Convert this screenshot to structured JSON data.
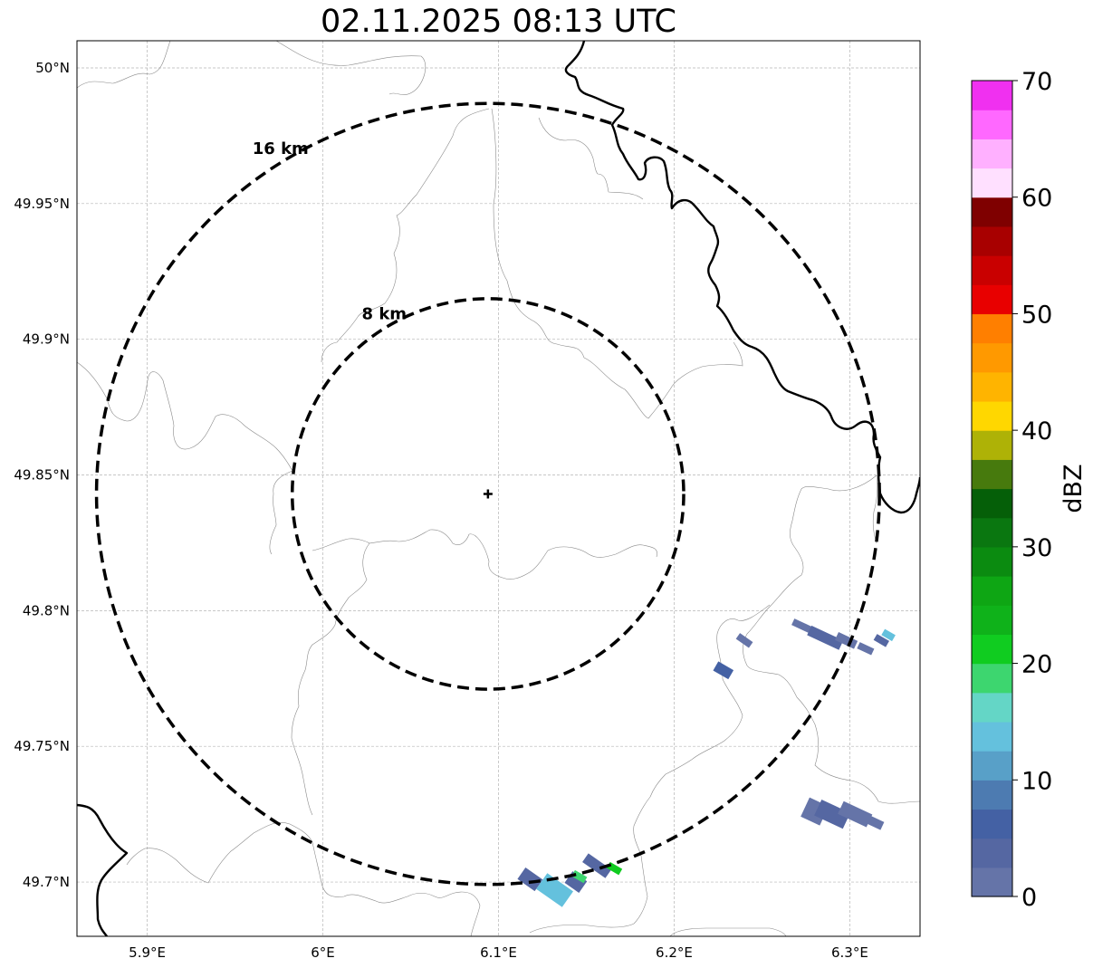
{
  "title": "02.11.2025 08:13 UTC",
  "map": {
    "lon_ticks": [
      {
        "value": 5.9,
        "label": "5.9°E"
      },
      {
        "value": 6.0,
        "label": "6°E"
      },
      {
        "value": 6.1,
        "label": "6.1°E"
      },
      {
        "value": 6.2,
        "label": "6.2°E"
      },
      {
        "value": 6.3,
        "label": "6.3°E"
      }
    ],
    "lat_ticks": [
      {
        "value": 50.0,
        "label": "50°N"
      },
      {
        "value": 49.95,
        "label": "49.95°N"
      },
      {
        "value": 49.9,
        "label": "49.9°N"
      },
      {
        "value": 49.85,
        "label": "49.85°N"
      },
      {
        "value": 49.8,
        "label": "49.8°N"
      },
      {
        "value": 49.75,
        "label": "49.75°N"
      },
      {
        "value": 49.7,
        "label": "49.7°N"
      }
    ],
    "extent": {
      "lon_min": 5.86,
      "lon_max": 6.34,
      "lat_min": 49.68,
      "lat_max": 50.01
    },
    "radar": {
      "lon": 6.094,
      "lat": 49.843
    },
    "range_rings": [
      {
        "km": 16,
        "label": "16 km"
      },
      {
        "km": 8,
        "label": "8 km"
      }
    ]
  },
  "colorbar": {
    "label": "dBZ",
    "min": 0,
    "max": 70,
    "ticks": [
      {
        "value": 0,
        "label": "0"
      },
      {
        "value": 10,
        "label": "10"
      },
      {
        "value": 20,
        "label": "20"
      },
      {
        "value": 30,
        "label": "30"
      },
      {
        "value": 40,
        "label": "40"
      },
      {
        "value": 50,
        "label": "50"
      },
      {
        "value": 60,
        "label": "60"
      },
      {
        "value": 70,
        "label": "70"
      }
    ],
    "colors": [
      "#6574a8",
      "#5567a2",
      "#4461a4",
      "#4d7bb1",
      "#58a0c8",
      "#64c1dd",
      "#64d6c6",
      "#3dd66f",
      "#10cc20",
      "#0fb21a",
      "#0ea614",
      "#0b8b10",
      "#0a7710",
      "#055f08",
      "#477a0d",
      "#aeb206",
      "#ffd700",
      "#ffb400",
      "#ff9900",
      "#ff7f00",
      "#e80000",
      "#c90000",
      "#a80000",
      "#7f0000",
      "#ffe0ff",
      "#ffb0ff",
      "#ff68ff",
      "#f030f0"
    ]
  },
  "echoes": [
    {
      "lon": 6.274,
      "lat": 49.794,
      "dbz": 2,
      "len": 0.014,
      "wid": 0.004,
      "angle": -25
    },
    {
      "lon": 6.286,
      "lat": 49.79,
      "dbz": 3,
      "len": 0.02,
      "wid": 0.006,
      "angle": -25
    },
    {
      "lon": 6.298,
      "lat": 49.789,
      "dbz": 2,
      "len": 0.012,
      "wid": 0.005,
      "angle": -25
    },
    {
      "lon": 6.309,
      "lat": 49.786,
      "dbz": 1,
      "len": 0.009,
      "wid": 0.004,
      "angle": -25
    },
    {
      "lon": 6.318,
      "lat": 49.789,
      "dbz": 3,
      "len": 0.008,
      "wid": 0.004,
      "angle": -30
    },
    {
      "lon": 6.322,
      "lat": 49.791,
      "dbz": 13,
      "len": 0.007,
      "wid": 0.004,
      "angle": -30
    },
    {
      "lon": 6.24,
      "lat": 49.789,
      "dbz": 2,
      "len": 0.009,
      "wid": 0.004,
      "angle": -35
    },
    {
      "lon": 6.228,
      "lat": 49.778,
      "dbz": 5,
      "len": 0.01,
      "wid": 0.006,
      "angle": -30
    },
    {
      "lon": 6.28,
      "lat": 49.726,
      "dbz": 2,
      "len": 0.012,
      "wid": 0.012,
      "angle": -25
    },
    {
      "lon": 6.29,
      "lat": 49.725,
      "dbz": 3,
      "len": 0.018,
      "wid": 0.01,
      "angle": -25
    },
    {
      "lon": 6.303,
      "lat": 49.725,
      "dbz": 2,
      "len": 0.018,
      "wid": 0.008,
      "angle": -25
    },
    {
      "lon": 6.314,
      "lat": 49.722,
      "dbz": 1,
      "len": 0.01,
      "wid": 0.005,
      "angle": -25
    },
    {
      "lon": 6.118,
      "lat": 49.701,
      "dbz": 3,
      "len": 0.012,
      "wid": 0.008,
      "angle": -35
    },
    {
      "lon": 6.132,
      "lat": 49.697,
      "dbz": 13,
      "len": 0.018,
      "wid": 0.011,
      "angle": -35
    },
    {
      "lon": 6.144,
      "lat": 49.7,
      "dbz": 4,
      "len": 0.01,
      "wid": 0.008,
      "angle": -35
    },
    {
      "lon": 6.146,
      "lat": 49.702,
      "dbz": 18,
      "len": 0.008,
      "wid": 0.004,
      "angle": -30
    },
    {
      "lon": 6.156,
      "lat": 49.706,
      "dbz": 3,
      "len": 0.016,
      "wid": 0.006,
      "angle": -35
    },
    {
      "lon": 6.166,
      "lat": 49.705,
      "dbz": 20,
      "len": 0.008,
      "wid": 0.004,
      "angle": -30
    }
  ]
}
